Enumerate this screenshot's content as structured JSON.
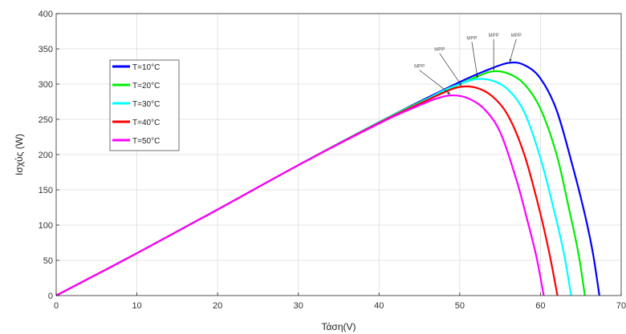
{
  "chart_data": {
    "type": "line",
    "title": "",
    "xlabel": "Τάση(V)",
    "ylabel": "Ισχύς (W)",
    "xlim": [
      0,
      70
    ],
    "ylim": [
      0,
      400
    ],
    "xticks": [
      0,
      10,
      20,
      30,
      40,
      50,
      60,
      70
    ],
    "yticks": [
      0,
      50,
      100,
      150,
      200,
      250,
      300,
      350,
      400
    ],
    "grid": true,
    "legend_position": "left",
    "series": [
      {
        "name": "T=10°C",
        "color": "#0000ff",
        "x": [
          0,
          10,
          20,
          30,
          40,
          45,
          50,
          53,
          56,
          58,
          60,
          62,
          64,
          65.5,
          66.5,
          67.3
        ],
        "y": [
          0,
          60,
          122,
          185,
          246,
          275,
          303,
          318,
          330,
          327,
          308,
          263,
          183,
          115,
          60,
          0
        ]
      },
      {
        "name": "T=20°C",
        "color": "#00ee00",
        "x": [
          0,
          10,
          20,
          30,
          40,
          45,
          50,
          52,
          54,
          56,
          58,
          60,
          62,
          63.5,
          64.7,
          65.5
        ],
        "y": [
          0,
          60,
          122,
          185,
          246,
          274,
          300,
          310,
          318,
          315,
          300,
          265,
          200,
          125,
          60,
          0
        ]
      },
      {
        "name": "T=30°C",
        "color": "#00ffff",
        "x": [
          0,
          10,
          20,
          30,
          40,
          45,
          48,
          50,
          52,
          54,
          56,
          58,
          60,
          61.7,
          62.9,
          63.8
        ],
        "y": [
          0,
          60,
          122,
          185,
          246,
          273,
          291,
          300,
          307,
          305,
          292,
          260,
          195,
          120,
          60,
          0
        ]
      },
      {
        "name": "T=40°C",
        "color": "#ff0000",
        "x": [
          0,
          10,
          20,
          30,
          40,
          45,
          48,
          50,
          52,
          54,
          56,
          58,
          59.8,
          61.1,
          62.1
        ],
        "y": [
          0,
          60,
          122,
          185,
          245,
          272,
          288,
          296,
          295,
          283,
          255,
          200,
          125,
          60,
          0
        ]
      },
      {
        "name": "T=50°C",
        "color": "#ff00ff",
        "x": [
          0,
          10,
          20,
          30,
          40,
          44,
          47,
          49,
          51,
          53,
          55,
          57,
          58.3,
          59.5,
          60.4
        ],
        "y": [
          0,
          60,
          122,
          185,
          244,
          265,
          279,
          284,
          280,
          265,
          232,
          165,
          110,
          55,
          0
        ]
      }
    ],
    "annotations": [
      {
        "text": "MPP",
        "x": 56.2,
        "y": 330,
        "label_x": 57,
        "label_y": 366
      },
      {
        "text": "MPP",
        "x": 54.2,
        "y": 318,
        "label_x": 54.2,
        "label_y": 366
      },
      {
        "text": "MPP",
        "x": 52.2,
        "y": 307,
        "label_x": 51.5,
        "label_y": 362
      },
      {
        "text": "MPP",
        "x": 50.2,
        "y": 296,
        "label_x": 47.5,
        "label_y": 346
      },
      {
        "text": "MPP",
        "x": 48.8,
        "y": 284,
        "label_x": 45,
        "label_y": 322
      }
    ]
  }
}
